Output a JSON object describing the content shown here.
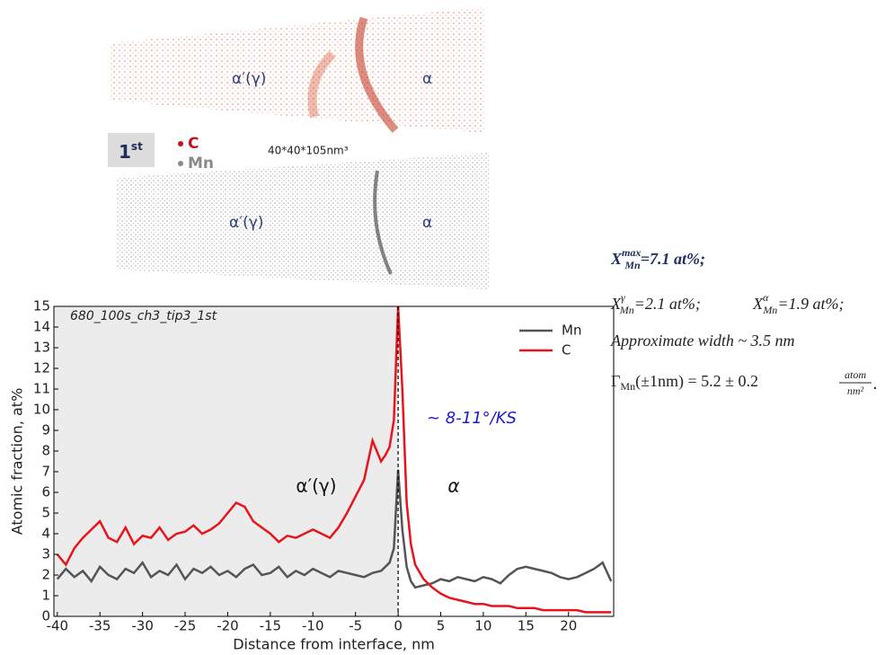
{
  "tomography": {
    "label_gamma": "α′(γ)",
    "label_alpha": "α",
    "badge": {
      "text": "1",
      "sup": "st"
    },
    "species": [
      "C",
      "Mn"
    ],
    "species_colors": [
      "#c0141c",
      "#8a8a8a"
    ],
    "size": "40*40*105nm³"
  },
  "notes": [
    {
      "symbol": "X",
      "sub": "Mn",
      "sup": "max",
      "text": "=7.1 at%;"
    },
    [
      {
        "symbol": "X",
        "sub": "Mn",
        "sup": "γ",
        "text": "=2.1 at%;"
      },
      {
        "symbol": "X",
        "sub": "Mn",
        "sup": "α",
        "text": "=1.9 at%;"
      }
    ],
    "Approximate width ~ 3.5 nm",
    {
      "symbol": "Γ",
      "sub": "Mn",
      "text": "(±1nm) = 5.2 ± 0.2",
      "num": "atom",
      "den": "nm²",
      "end": "."
    }
  ],
  "chart_data": {
    "type": "line",
    "xlabel": "Distance from interface, nm",
    "ylabel": "Atomic fraction, at%",
    "annotations": [
      "680_100s_ch3_tip3_1st",
      "~ 8-11°/KS",
      "α′(γ)",
      "α"
    ],
    "x": [
      -40,
      -39,
      -38,
      -37,
      -36,
      -35,
      -34,
      -33,
      -32,
      -31,
      -30,
      -29,
      -28,
      -27,
      -26,
      -25,
      -24,
      -23,
      -22,
      -21,
      -20,
      -19,
      -18,
      -17,
      -16,
      -15,
      -14,
      -13,
      -12,
      -11,
      -10,
      -9,
      -8,
      -7,
      -6,
      -5,
      -4,
      -3,
      -2,
      -1.5,
      -1,
      -0.5,
      0,
      0.5,
      1,
      1.5,
      2,
      3,
      4,
      5,
      6,
      7,
      8,
      9,
      10,
      11,
      12,
      13,
      14,
      15,
      16,
      17,
      18,
      19,
      20,
      21,
      22,
      23,
      24,
      25
    ],
    "series": [
      {
        "name": "Mn",
        "color": "#555555",
        "values": [
          1.8,
          2.3,
          1.9,
          2.2,
          1.7,
          2.4,
          2.0,
          1.8,
          2.3,
          2.1,
          2.6,
          1.9,
          2.2,
          2.0,
          2.5,
          1.8,
          2.3,
          2.1,
          2.4,
          2.0,
          2.2,
          1.9,
          2.3,
          2.5,
          2.0,
          2.1,
          2.4,
          1.9,
          2.2,
          2.0,
          2.3,
          2.1,
          1.9,
          2.2,
          2.1,
          2.0,
          1.9,
          2.1,
          2.2,
          2.4,
          2.6,
          3.3,
          7.1,
          4.2,
          2.4,
          1.7,
          1.4,
          1.5,
          1.6,
          1.8,
          1.7,
          1.9,
          1.8,
          1.7,
          1.9,
          1.8,
          1.6,
          2.0,
          2.3,
          2.4,
          2.3,
          2.2,
          2.1,
          1.9,
          1.8,
          1.9,
          2.1,
          2.3,
          2.6,
          1.7
        ]
      },
      {
        "name": "C",
        "color": "#e8141c",
        "values": [
          3.0,
          2.5,
          3.3,
          3.8,
          4.2,
          4.6,
          3.8,
          3.6,
          4.3,
          3.5,
          3.9,
          3.8,
          4.3,
          3.7,
          4.0,
          4.1,
          4.4,
          4.0,
          4.2,
          4.5,
          5.0,
          5.5,
          5.3,
          4.6,
          4.3,
          4.0,
          3.6,
          3.9,
          3.8,
          4.0,
          4.2,
          4.0,
          3.8,
          4.3,
          5.0,
          5.8,
          6.6,
          8.5,
          7.5,
          7.8,
          8.2,
          9.5,
          15,
          11,
          5.5,
          3.5,
          2.5,
          1.8,
          1.4,
          1.1,
          0.9,
          0.8,
          0.7,
          0.6,
          0.6,
          0.5,
          0.5,
          0.5,
          0.4,
          0.4,
          0.4,
          0.3,
          0.3,
          0.3,
          0.3,
          0.3,
          0.2,
          0.2,
          0.2,
          0.2
        ]
      }
    ],
    "xlim": [
      -40.4,
      25.3
    ],
    "ylim": [
      0,
      15
    ],
    "xticks": [
      -40,
      -35,
      -30,
      -25,
      -20,
      -15,
      -10,
      -5,
      0,
      5,
      10,
      15,
      20
    ],
    "yticks": [
      0,
      1,
      2,
      3,
      4,
      5,
      6,
      7,
      8,
      9,
      10,
      11,
      12,
      13,
      14,
      15
    ],
    "shaded_region": [
      -40.4,
      0
    ],
    "shade_color": "#ececec",
    "interface": 0,
    "legend": "upper right"
  }
}
